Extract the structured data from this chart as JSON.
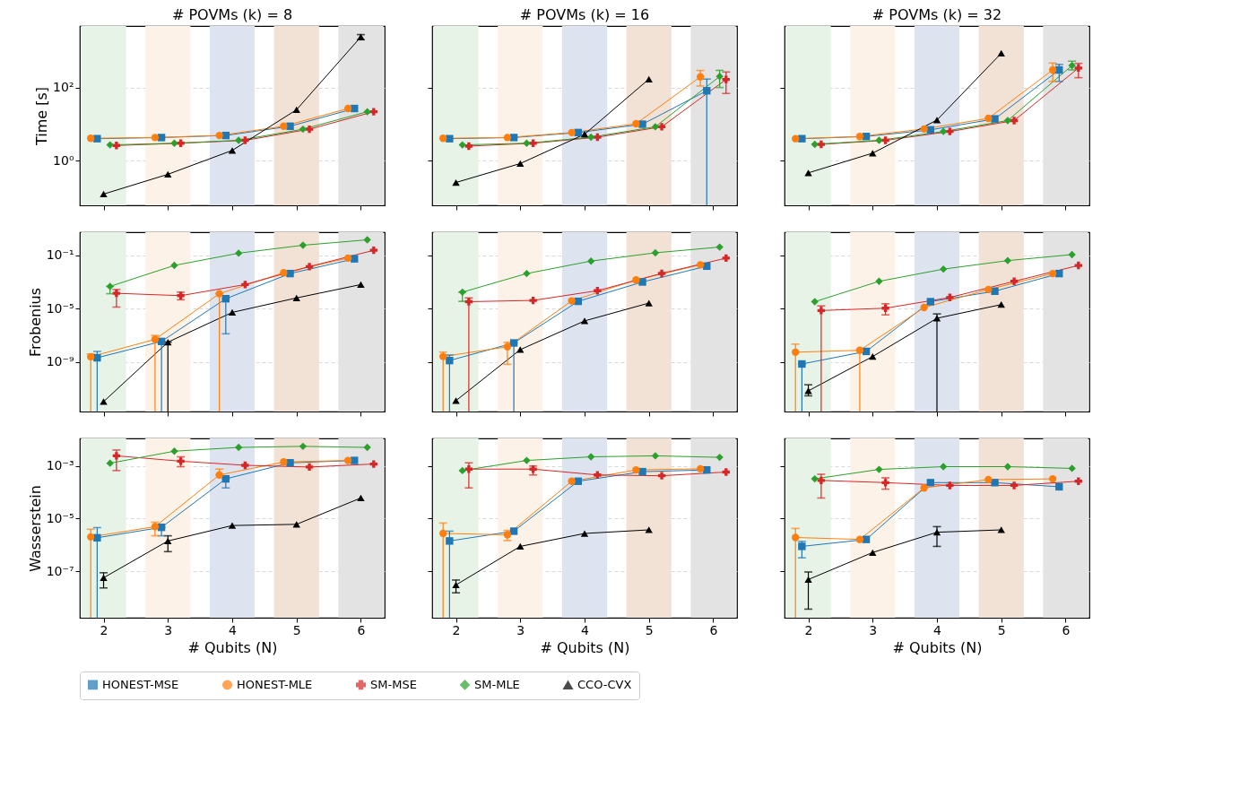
{
  "chart_data": [
    {
      "type": "line",
      "title": "# POVMs (k) = 8",
      "ylabel": "Time [s]",
      "log": true,
      "grid": true,
      "legend": "bottom",
      "tick_labels": "y",
      "xlim": [
        1.63,
        6.37
      ],
      "xticks": [
        2,
        3,
        4,
        5,
        6
      ],
      "ylim": [
        0.059,
        5000
      ],
      "yticks": [
        {
          "value": 1,
          "label": "10⁰"
        },
        {
          "value": 100,
          "label": "10²"
        }
      ],
      "bands": [
        {
          "axis": "x",
          "from": 1.65,
          "to": 2.35,
          "color": "#e8f3e8"
        },
        {
          "axis": "x",
          "from": 2.65,
          "to": 3.35,
          "color": "#fdf2e7"
        },
        {
          "axis": "x",
          "from": 3.65,
          "to": 4.35,
          "color": "#dde4f0"
        },
        {
          "axis": "x",
          "from": 4.65,
          "to": 5.35,
          "color": "#f2e2d6"
        },
        {
          "axis": "x",
          "from": 5.65,
          "to": 6.35,
          "color": "#e3e3e3"
        }
      ],
      "series": [
        {
          "name": "HONEST-MSE",
          "color": "#1f77b4",
          "marker": "square",
          "x": [
            1.9,
            2.9,
            3.9,
            4.9,
            5.9
          ],
          "values": [
            4.0,
            4.3,
            4.9,
            8.8,
            27
          ]
        },
        {
          "name": "HONEST-MLE",
          "color": "#ff7f0e",
          "marker": "circle",
          "x": [
            1.8,
            2.8,
            3.8,
            4.8,
            5.8
          ],
          "values": [
            4.1,
            4.3,
            4.9,
            8.8,
            27
          ]
        },
        {
          "name": "SM-MSE",
          "color": "#d62728",
          "marker": "cross",
          "x": [
            2.2,
            3.2,
            4.2,
            5.2,
            6.2
          ],
          "values": [
            2.6,
            3.0,
            3.6,
            7.3,
            22
          ]
        },
        {
          "name": "SM-MLE",
          "color": "#2ca02c",
          "marker": "diamond",
          "x": [
            2.1,
            3.1,
            4.1,
            5.1,
            6.1
          ],
          "values": [
            2.7,
            3.0,
            3.6,
            7.3,
            22
          ]
        },
        {
          "name": "CCO-CVX",
          "color": "#000000",
          "marker": "triangle",
          "x": [
            2,
            3,
            4,
            5,
            6
          ],
          "values": [
            0.12,
            0.42,
            1.9,
            25,
            2500
          ],
          "errors": [
            null,
            null,
            null,
            null,
            [
              2100,
              2900
            ]
          ]
        }
      ]
    },
    {
      "type": "line",
      "title": "# POVMs (k) = 16",
      "log": true,
      "grid": true,
      "legend": "bottom",
      "tick_labels": false,
      "xlim": [
        1.63,
        6.37
      ],
      "xticks": [
        2,
        3,
        4,
        5,
        6
      ],
      "ylim": [
        0.059,
        5000
      ],
      "yticks": [
        {
          "value": 1,
          "label": "10⁰"
        },
        {
          "value": 100,
          "label": "10²"
        }
      ],
      "bands": [
        {
          "axis": "x",
          "from": 1.65,
          "to": 2.35,
          "color": "#e8f3e8"
        },
        {
          "axis": "x",
          "from": 2.65,
          "to": 3.35,
          "color": "#fdf2e7"
        },
        {
          "axis": "x",
          "from": 3.65,
          "to": 4.35,
          "color": "#dde4f0"
        },
        {
          "axis": "x",
          "from": 4.65,
          "to": 5.35,
          "color": "#f2e2d6"
        },
        {
          "axis": "x",
          "from": 5.65,
          "to": 6.35,
          "color": "#e3e3e3"
        }
      ],
      "series": [
        {
          "name": "HONEST-MSE",
          "color": "#1f77b4",
          "marker": "square",
          "x": [
            1.9,
            2.9,
            3.9,
            4.9,
            5.9
          ],
          "values": [
            4.0,
            4.3,
            5.9,
            10,
            83
          ],
          "errors": [
            null,
            null,
            null,
            null,
            [
              0.059,
              174
            ]
          ]
        },
        {
          "name": "HONEST-MLE",
          "color": "#ff7f0e",
          "marker": "circle",
          "x": [
            1.8,
            2.8,
            3.8,
            4.8,
            5.8
          ],
          "values": [
            4.1,
            4.3,
            5.9,
            10.3,
            200
          ],
          "errors": [
            null,
            null,
            null,
            null,
            [
              112,
              300
            ]
          ]
        },
        {
          "name": "SM-MSE",
          "color": "#d62728",
          "marker": "cross",
          "x": [
            2.2,
            3.2,
            4.2,
            5.2,
            6.2
          ],
          "values": [
            2.5,
            3.0,
            4.4,
            8.5,
            170
          ],
          "errors": [
            null,
            null,
            null,
            null,
            [
              70,
              272
            ]
          ]
        },
        {
          "name": "SM-MLE",
          "color": "#2ca02c",
          "marker": "diamond",
          "x": [
            2.1,
            3.1,
            4.1,
            5.1,
            6.1
          ],
          "values": [
            2.7,
            3.0,
            4.4,
            8.5,
            205
          ],
          "errors": [
            null,
            null,
            null,
            null,
            [
              102,
              302
            ]
          ]
        },
        {
          "name": "CCO-CVX",
          "color": "#000000",
          "marker": "triangle",
          "x": [
            2,
            3,
            4,
            5
          ],
          "values": [
            0.25,
            0.83,
            5.3,
            173
          ]
        }
      ]
    },
    {
      "type": "line",
      "title": "# POVMs (k) = 32",
      "log": true,
      "grid": true,
      "legend": "bottom",
      "tick_labels": false,
      "xlim": [
        1.63,
        6.37
      ],
      "xticks": [
        2,
        3,
        4,
        5,
        6
      ],
      "ylim": [
        0.059,
        5000
      ],
      "yticks": [
        {
          "value": 1,
          "label": "10⁰"
        },
        {
          "value": 100,
          "label": "10²"
        }
      ],
      "bands": [
        {
          "axis": "x",
          "from": 1.65,
          "to": 2.35,
          "color": "#e8f3e8"
        },
        {
          "axis": "x",
          "from": 2.65,
          "to": 3.35,
          "color": "#fdf2e7"
        },
        {
          "axis": "x",
          "from": 3.65,
          "to": 4.35,
          "color": "#dde4f0"
        },
        {
          "axis": "x",
          "from": 4.65,
          "to": 5.35,
          "color": "#f2e2d6"
        },
        {
          "axis": "x",
          "from": 5.65,
          "to": 6.35,
          "color": "#e3e3e3"
        }
      ],
      "series": [
        {
          "name": "HONEST-MSE",
          "color": "#1f77b4",
          "marker": "square",
          "x": [
            1.9,
            2.9,
            3.9,
            4.9,
            5.9
          ],
          "values": [
            4.0,
            4.6,
            7.0,
            14,
            310
          ],
          "errors": [
            null,
            null,
            null,
            null,
            [
              150,
              440
            ]
          ]
        },
        {
          "name": "HONEST-MLE",
          "color": "#ff7f0e",
          "marker": "circle",
          "x": [
            1.8,
            2.8,
            3.8,
            4.8,
            5.8
          ],
          "values": [
            4.0,
            4.6,
            7.4,
            14.5,
            310
          ],
          "errors": [
            null,
            null,
            null,
            null,
            [
              150,
              480
            ]
          ]
        },
        {
          "name": "SM-MSE",
          "color": "#d62728",
          "marker": "cross",
          "x": [
            2.2,
            3.2,
            4.2,
            5.2,
            6.2
          ],
          "values": [
            2.8,
            3.6,
            6.3,
            12.6,
            350
          ],
          "errors": [
            null,
            null,
            null,
            null,
            [
              190,
              470
            ]
          ]
        },
        {
          "name": "SM-MLE",
          "color": "#2ca02c",
          "marker": "diamond",
          "x": [
            2.1,
            3.1,
            4.1,
            5.1,
            6.1
          ],
          "values": [
            2.8,
            3.6,
            6.3,
            12.6,
            410
          ],
          "errors": [
            null,
            null,
            null,
            null,
            [
              310,
              540
            ]
          ]
        },
        {
          "name": "CCO-CVX",
          "color": "#000000",
          "marker": "triangle",
          "x": [
            2,
            3,
            4,
            5
          ],
          "values": [
            0.46,
            1.6,
            13,
            890
          ]
        }
      ]
    },
    {
      "type": "line",
      "ylabel": "Frobenius",
      "log": true,
      "grid": true,
      "legend": "bottom",
      "tick_labels": "y",
      "xlim": [
        1.63,
        6.37
      ],
      "xticks": [
        2,
        3,
        4,
        5,
        6
      ],
      "ylim": [
        2e-13,
        5.2
      ],
      "yticks": [
        {
          "value": 1e-09,
          "label": "10⁻⁹"
        },
        {
          "value": 1e-05,
          "label": "10⁻⁵"
        },
        {
          "value": 0.1,
          "label": "10⁻¹"
        }
      ],
      "bands": [
        {
          "axis": "x",
          "from": 1.65,
          "to": 2.35,
          "color": "#e8f3e8"
        },
        {
          "axis": "x",
          "from": 2.65,
          "to": 3.35,
          "color": "#fdf2e7"
        },
        {
          "axis": "x",
          "from": 3.65,
          "to": 4.35,
          "color": "#dde4f0"
        },
        {
          "axis": "x",
          "from": 4.65,
          "to": 5.35,
          "color": "#f2e2d6"
        },
        {
          "axis": "x",
          "from": 5.65,
          "to": 6.35,
          "color": "#e3e3e3"
        }
      ],
      "series": [
        {
          "name": "HONEST-MSE",
          "color": "#1f77b4",
          "marker": "square",
          "x": [
            1.9,
            2.9,
            3.9,
            4.9,
            5.9
          ],
          "values": [
            2.1e-09,
            3.5e-08,
            5.5e-05,
            0.0042,
            0.053
          ],
          "errors": [
            [
              2e-13,
              6.3e-09
            ],
            [
              2e-13,
              3.5e-08
            ],
            [
              1.3e-07,
              5.5e-05
            ],
            null,
            null
          ]
        },
        {
          "name": "HONEST-MLE",
          "color": "#ff7f0e",
          "marker": "circle",
          "x": [
            1.8,
            2.8,
            3.8,
            4.8,
            5.8
          ],
          "values": [
            2.5e-09,
            5e-08,
            0.00013,
            0.0048,
            0.06
          ],
          "errors": [
            [
              2e-13,
              4e-09
            ],
            [
              2e-13,
              9.8e-08
            ],
            [
              2e-13,
              0.00013
            ],
            null,
            null
          ]
        },
        {
          "name": "SM-MSE",
          "color": "#d62728",
          "marker": "cross",
          "x": [
            2.2,
            3.2,
            4.2,
            5.2,
            6.2
          ],
          "values": [
            0.00014,
            9.3e-05,
            0.00063,
            0.014,
            0.23
          ],
          "errors": [
            [
              1.3e-05,
              0.00027
            ],
            [
              4.6e-05,
              0.00017
            ],
            null,
            null,
            null
          ]
        },
        {
          "name": "SM-MLE",
          "color": "#2ca02c",
          "marker": "diamond",
          "x": [
            2.1,
            3.1,
            4.1,
            5.1,
            6.1
          ],
          "values": [
            0.00046,
            0.017,
            0.14,
            0.55,
            1.4
          ],
          "errors": [
            [
              0.00013,
              0.00046
            ],
            null,
            null,
            null,
            null
          ]
        },
        {
          "name": "CCO-CVX",
          "color": "#000000",
          "marker": "triangle",
          "x": [
            2,
            3,
            4,
            5,
            6
          ],
          "values": [
            1.1e-12,
            3.1e-08,
            5.2e-06,
            6.3e-05,
            0.00063
          ],
          "errors": [
            null,
            [
              2e-13,
              3.1e-08
            ],
            null,
            null,
            null
          ]
        }
      ]
    },
    {
      "type": "line",
      "log": true,
      "grid": true,
      "legend": "bottom",
      "tick_labels": false,
      "xlim": [
        1.63,
        6.37
      ],
      "xticks": [
        2,
        3,
        4,
        5,
        6
      ],
      "ylim": [
        2e-13,
        5.2
      ],
      "yticks": [
        {
          "value": 1e-09,
          "label": "10⁻⁹"
        },
        {
          "value": 1e-05,
          "label": "10⁻⁵"
        },
        {
          "value": 0.1,
          "label": "10⁻¹"
        }
      ],
      "bands": [
        {
          "axis": "x",
          "from": 1.65,
          "to": 2.35,
          "color": "#e8f3e8"
        },
        {
          "axis": "x",
          "from": 2.65,
          "to": 3.35,
          "color": "#fdf2e7"
        },
        {
          "axis": "x",
          "from": 3.65,
          "to": 4.35,
          "color": "#dde4f0"
        },
        {
          "axis": "x",
          "from": 4.65,
          "to": 5.35,
          "color": "#f2e2d6"
        },
        {
          "axis": "x",
          "from": 5.65,
          "to": 6.35,
          "color": "#e3e3e3"
        }
      ],
      "series": [
        {
          "name": "HONEST-MSE",
          "color": "#1f77b4",
          "marker": "square",
          "x": [
            1.9,
            2.9,
            3.9,
            4.9,
            5.9
          ],
          "values": [
            1.3e-09,
            2.7e-08,
            3.5e-05,
            0.00098,
            0.015
          ],
          "errors": [
            [
              2e-13,
              3.4e-09
            ],
            [
              2e-13,
              2.7e-08
            ],
            null,
            null,
            null
          ]
        },
        {
          "name": "HONEST-MLE",
          "color": "#ff7f0e",
          "marker": "circle",
          "x": [
            1.8,
            2.8,
            3.8,
            4.8,
            5.8
          ],
          "values": [
            2.6e-09,
            1.4e-08,
            3.8e-05,
            0.0014,
            0.019
          ],
          "errors": [
            [
              2e-13,
              5.6e-09
            ],
            [
              6.8e-10,
              3e-08
            ],
            null,
            null,
            null
          ]
        },
        {
          "name": "SM-MSE",
          "color": "#d62728",
          "marker": "cross",
          "x": [
            2.2,
            3.2,
            4.2,
            5.2,
            6.2
          ],
          "values": [
            3.3e-05,
            4.1e-05,
            0.00022,
            0.0043,
            0.06
          ],
          "errors": [
            [
              2e-13,
              6.3e-05
            ],
            null,
            null,
            null,
            null
          ]
        },
        {
          "name": "SM-MLE",
          "color": "#2ca02c",
          "marker": "diamond",
          "x": [
            2.1,
            3.1,
            4.1,
            5.1,
            6.1
          ],
          "values": [
            0.00017,
            0.0042,
            0.036,
            0.15,
            0.4
          ],
          "errors": [
            [
              3.5e-05,
              0.00017
            ],
            null,
            null,
            null,
            null
          ]
        },
        {
          "name": "CCO-CVX",
          "color": "#000000",
          "marker": "triangle",
          "x": [
            2,
            3,
            4,
            5
          ],
          "values": [
            1.3e-12,
            8.5e-09,
            1.2e-06,
            2.6e-05
          ]
        }
      ]
    },
    {
      "type": "line",
      "log": true,
      "grid": true,
      "legend": "bottom",
      "tick_labels": false,
      "xlim": [
        1.63,
        6.37
      ],
      "xticks": [
        2,
        3,
        4,
        5,
        6
      ],
      "ylim": [
        2e-13,
        5.2
      ],
      "yticks": [
        {
          "value": 1e-09,
          "label": "10⁻⁹"
        },
        {
          "value": 1e-05,
          "label": "10⁻⁵"
        },
        {
          "value": 0.1,
          "label": "10⁻¹"
        }
      ],
      "bands": [
        {
          "axis": "x",
          "from": 1.65,
          "to": 2.35,
          "color": "#e8f3e8"
        },
        {
          "axis": "x",
          "from": 2.65,
          "to": 3.35,
          "color": "#fdf2e7"
        },
        {
          "axis": "x",
          "from": 3.65,
          "to": 4.35,
          "color": "#dde4f0"
        },
        {
          "axis": "x",
          "from": 4.65,
          "to": 5.35,
          "color": "#f2e2d6"
        },
        {
          "axis": "x",
          "from": 5.65,
          "to": 6.35,
          "color": "#e3e3e3"
        }
      ],
      "series": [
        {
          "name": "HONEST-MSE",
          "color": "#1f77b4",
          "marker": "square",
          "x": [
            1.9,
            2.9,
            3.9,
            4.9,
            5.9
          ],
          "values": [
            7.2e-10,
            6.3e-09,
            3.3e-05,
            0.0002,
            0.0042
          ],
          "errors": [
            [
              2e-13,
              7.2e-10
            ],
            null,
            null,
            null,
            null
          ]
        },
        {
          "name": "HONEST-MLE",
          "color": "#ff7f0e",
          "marker": "circle",
          "x": [
            1.8,
            2.8,
            3.8,
            4.8,
            5.8
          ],
          "values": [
            5.5e-09,
            7.6e-09,
            1.2e-05,
            0.00027,
            0.0042
          ],
          "errors": [
            [
              2e-13,
              2.2e-08
            ],
            [
              2e-13,
              7.6e-09
            ],
            null,
            null,
            null
          ]
        },
        {
          "name": "SM-MSE",
          "color": "#d62728",
          "marker": "cross",
          "x": [
            2.2,
            3.2,
            4.2,
            5.2,
            6.2
          ],
          "values": [
            7.2e-06,
            1.07e-05,
            6.8e-05,
            0.0011,
            0.017
          ],
          "errors": [
            [
              2e-13,
              1.6e-05
            ],
            [
              3.4e-06,
              2.3e-05
            ],
            null,
            null,
            null
          ]
        },
        {
          "name": "SM-MLE",
          "color": "#2ca02c",
          "marker": "diamond",
          "x": [
            2.1,
            3.1,
            4.1,
            5.1,
            6.1
          ],
          "values": [
            3.3e-05,
            0.0011,
            0.009,
            0.039,
            0.11
          ]
        },
        {
          "name": "CCO-CVX",
          "color": "#000000",
          "marker": "triangle",
          "x": [
            2,
            3,
            4,
            5
          ],
          "values": [
            7e-12,
            2.6e-09,
            1.9e-06,
            2e-05
          ],
          "errors": [
            [
              3e-12,
              2e-11
            ],
            null,
            [
              2e-13,
              4e-06
            ],
            null
          ]
        }
      ]
    },
    {
      "type": "line",
      "ylabel": "Wasserstein",
      "xlabel": "# Qubits (N)",
      "log": true,
      "grid": true,
      "legend": "bottom",
      "xlim": [
        1.63,
        6.37
      ],
      "xticks": [
        2,
        3,
        4,
        5,
        6
      ],
      "ylim": [
        1.7e-09,
        0.011
      ],
      "yticks": [
        {
          "value": 1e-07,
          "label": "10⁻⁷"
        },
        {
          "value": 1e-05,
          "label": "10⁻⁵"
        },
        {
          "value": 0.001,
          "label": "10⁻³"
        }
      ],
      "bands": [
        {
          "axis": "x",
          "from": 1.65,
          "to": 2.35,
          "color": "#e8f3e8"
        },
        {
          "axis": "x",
          "from": 2.65,
          "to": 3.35,
          "color": "#fdf2e7"
        },
        {
          "axis": "x",
          "from": 3.65,
          "to": 4.35,
          "color": "#dde4f0"
        },
        {
          "axis": "x",
          "from": 4.65,
          "to": 5.35,
          "color": "#f2e2d6"
        },
        {
          "axis": "x",
          "from": 5.65,
          "to": 6.35,
          "color": "#e3e3e3"
        }
      ],
      "series": [
        {
          "name": "HONEST-MSE",
          "color": "#1f77b4",
          "marker": "square",
          "x": [
            1.9,
            2.9,
            3.9,
            4.9,
            5.9
          ],
          "values": [
            1.85e-06,
            4.6e-06,
            0.00032,
            0.0013,
            0.0016
          ],
          "errors": [
            [
              1.7e-09,
              4.5e-06
            ],
            [
              2.2e-06,
              4.6e-06
            ],
            [
              0.000145,
              0.00032
            ],
            null,
            null
          ]
        },
        {
          "name": "HONEST-MLE",
          "color": "#ff7f0e",
          "marker": "circle",
          "x": [
            1.8,
            2.8,
            3.8,
            4.8,
            5.8
          ],
          "values": [
            2e-06,
            4.9e-06,
            0.00045,
            0.0014,
            0.0016
          ],
          "errors": [
            [
              1.7e-09,
              3.9e-06
            ],
            [
              2.2e-06,
              7.2e-06
            ],
            [
              0.00045,
              0.00075
            ],
            null,
            null
          ]
        },
        {
          "name": "SM-MSE",
          "color": "#d62728",
          "marker": "cross",
          "x": [
            2.2,
            3.2,
            4.2,
            5.2,
            6.2
          ],
          "values": [
            0.0024,
            0.0015,
            0.00105,
            0.0009,
            0.00117
          ],
          "errors": [
            [
              0.00066,
              0.004
            ],
            [
              0.00093,
              0.0022
            ],
            null,
            null,
            null
          ]
        },
        {
          "name": "SM-MLE",
          "color": "#2ca02c",
          "marker": "diamond",
          "x": [
            2.1,
            3.1,
            4.1,
            5.1,
            6.1
          ],
          "values": [
            0.00126,
            0.0036,
            0.005,
            0.0055,
            0.005
          ]
        },
        {
          "name": "CCO-CVX",
          "color": "#000000",
          "marker": "triangle",
          "x": [
            2,
            3,
            4,
            5,
            6
          ],
          "values": [
            5.6e-08,
            1.4e-06,
            5.4e-06,
            6e-06,
            6e-05
          ],
          "errors": [
            [
              2.3e-08,
              8.7e-08
            ],
            [
              5.5e-07,
              2.2e-06
            ],
            null,
            null,
            null
          ]
        }
      ]
    },
    {
      "type": "line",
      "xlabel": "# Qubits (N)",
      "log": true,
      "grid": true,
      "legend": "bottom",
      "tick_labels": "x",
      "xlim": [
        1.63,
        6.37
      ],
      "xticks": [
        2,
        3,
        4,
        5,
        6
      ],
      "ylim": [
        1.7e-09,
        0.011
      ],
      "yticks": [
        {
          "value": 1e-07,
          "label": "10⁻⁷"
        },
        {
          "value": 1e-05,
          "label": "10⁻⁵"
        },
        {
          "value": 0.001,
          "label": "10⁻³"
        }
      ],
      "bands": [
        {
          "axis": "x",
          "from": 1.65,
          "to": 2.35,
          "color": "#e8f3e8"
        },
        {
          "axis": "x",
          "from": 2.65,
          "to": 3.35,
          "color": "#fdf2e7"
        },
        {
          "axis": "x",
          "from": 3.65,
          "to": 4.35,
          "color": "#dde4f0"
        },
        {
          "axis": "x",
          "from": 4.65,
          "to": 5.35,
          "color": "#f2e2d6"
        },
        {
          "axis": "x",
          "from": 5.65,
          "to": 6.35,
          "color": "#e3e3e3"
        }
      ],
      "series": [
        {
          "name": "HONEST-MSE",
          "color": "#1f77b4",
          "marker": "square",
          "x": [
            1.9,
            2.9,
            3.9,
            4.9,
            5.9
          ],
          "values": [
            1.4e-06,
            3.3e-06,
            0.00026,
            0.0006,
            0.0007
          ],
          "errors": [
            [
              1.7e-09,
              3.3e-06
            ],
            null,
            null,
            null,
            null
          ]
        },
        {
          "name": "HONEST-MLE",
          "color": "#ff7f0e",
          "marker": "circle",
          "x": [
            1.8,
            2.8,
            3.8,
            4.8,
            5.8
          ],
          "values": [
            2.7e-06,
            2.4e-06,
            0.00026,
            0.0007,
            0.00077
          ],
          "errors": [
            [
              1.7e-09,
              6.7e-06
            ],
            [
              1.45e-06,
              3.5e-06
            ],
            null,
            null,
            null
          ]
        },
        {
          "name": "SM-MSE",
          "color": "#d62728",
          "marker": "cross",
          "x": [
            2.2,
            3.2,
            4.2,
            5.2,
            6.2
          ],
          "values": [
            0.00075,
            0.00075,
            0.00045,
            0.00042,
            0.00058
          ],
          "errors": [
            [
              0.000145,
              0.0013
            ],
            [
              0.00045,
              0.00098
            ],
            null,
            null,
            null
          ]
        },
        {
          "name": "SM-MLE",
          "color": "#2ca02c",
          "marker": "diamond",
          "x": [
            2.1,
            3.1,
            4.1,
            5.1,
            6.1
          ],
          "values": [
            0.00066,
            0.0016,
            0.0022,
            0.0024,
            0.0021
          ]
        },
        {
          "name": "CCO-CVX",
          "color": "#000000",
          "marker": "triangle",
          "x": [
            2,
            3,
            4,
            5
          ],
          "values": [
            3e-08,
            8.7e-07,
            2.7e-06,
            3.7e-06
          ],
          "errors": [
            [
              1.5e-08,
              4.6e-08
            ],
            null,
            null,
            null
          ]
        }
      ]
    },
    {
      "type": "line",
      "xlabel": "# Qubits (N)",
      "log": true,
      "grid": true,
      "legend": "bottom",
      "tick_labels": "x",
      "xlim": [
        1.63,
        6.37
      ],
      "xticks": [
        2,
        3,
        4,
        5,
        6
      ],
      "ylim": [
        1.7e-09,
        0.011
      ],
      "yticks": [
        {
          "value": 1e-07,
          "label": "10⁻⁷"
        },
        {
          "value": 1e-05,
          "label": "10⁻⁵"
        },
        {
          "value": 0.001,
          "label": "10⁻³"
        }
      ],
      "bands": [
        {
          "axis": "x",
          "from": 1.65,
          "to": 2.35,
          "color": "#e8f3e8"
        },
        {
          "axis": "x",
          "from": 2.65,
          "to": 3.35,
          "color": "#fdf2e7"
        },
        {
          "axis": "x",
          "from": 3.65,
          "to": 4.35,
          "color": "#dde4f0"
        },
        {
          "axis": "x",
          "from": 4.65,
          "to": 5.35,
          "color": "#f2e2d6"
        },
        {
          "axis": "x",
          "from": 5.65,
          "to": 6.35,
          "color": "#e3e3e3"
        }
      ],
      "series": [
        {
          "name": "HONEST-MSE",
          "color": "#1f77b4",
          "marker": "square",
          "x": [
            1.9,
            2.9,
            3.9,
            4.9,
            5.9
          ],
          "values": [
            8.7e-07,
            1.6e-06,
            0.00023,
            0.00023,
            0.00016
          ],
          "errors": [
            [
              3.2e-07,
              1.35e-06
            ],
            null,
            null,
            null,
            null
          ]
        },
        {
          "name": "HONEST-MLE",
          "color": "#ff7f0e",
          "marker": "circle",
          "x": [
            1.8,
            2.8,
            3.8,
            4.8,
            5.8
          ],
          "values": [
            1.9e-06,
            1.6e-06,
            0.000145,
            0.0003,
            0.00032
          ],
          "errors": [
            [
              1.7e-09,
              4.2e-06
            ],
            null,
            null,
            null,
            null
          ]
        },
        {
          "name": "SM-MSE",
          "color": "#d62728",
          "marker": "cross",
          "x": [
            2.2,
            3.2,
            4.2,
            5.2,
            6.2
          ],
          "values": [
            0.00028,
            0.00023,
            0.00018,
            0.00018,
            0.00026
          ],
          "errors": [
            [
              6e-05,
              0.00048
            ],
            [
              0.00013,
              0.00035
            ],
            null,
            null,
            null
          ]
        },
        {
          "name": "SM-MLE",
          "color": "#2ca02c",
          "marker": "diamond",
          "x": [
            2.1,
            3.1,
            4.1,
            5.1,
            6.1
          ],
          "values": [
            0.00032,
            0.00073,
            0.00093,
            0.00093,
            0.0008
          ]
        },
        {
          "name": "CCO-CVX",
          "color": "#000000",
          "marker": "triangle",
          "x": [
            2,
            3,
            4,
            5
          ],
          "values": [
            4.8e-08,
            5.1e-07,
            3e-06,
            3.7e-06
          ],
          "errors": [
            [
              3.6e-09,
              9.3e-08
            ],
            null,
            [
              8.7e-07,
              4.9e-06
            ],
            null
          ]
        }
      ]
    }
  ]
}
